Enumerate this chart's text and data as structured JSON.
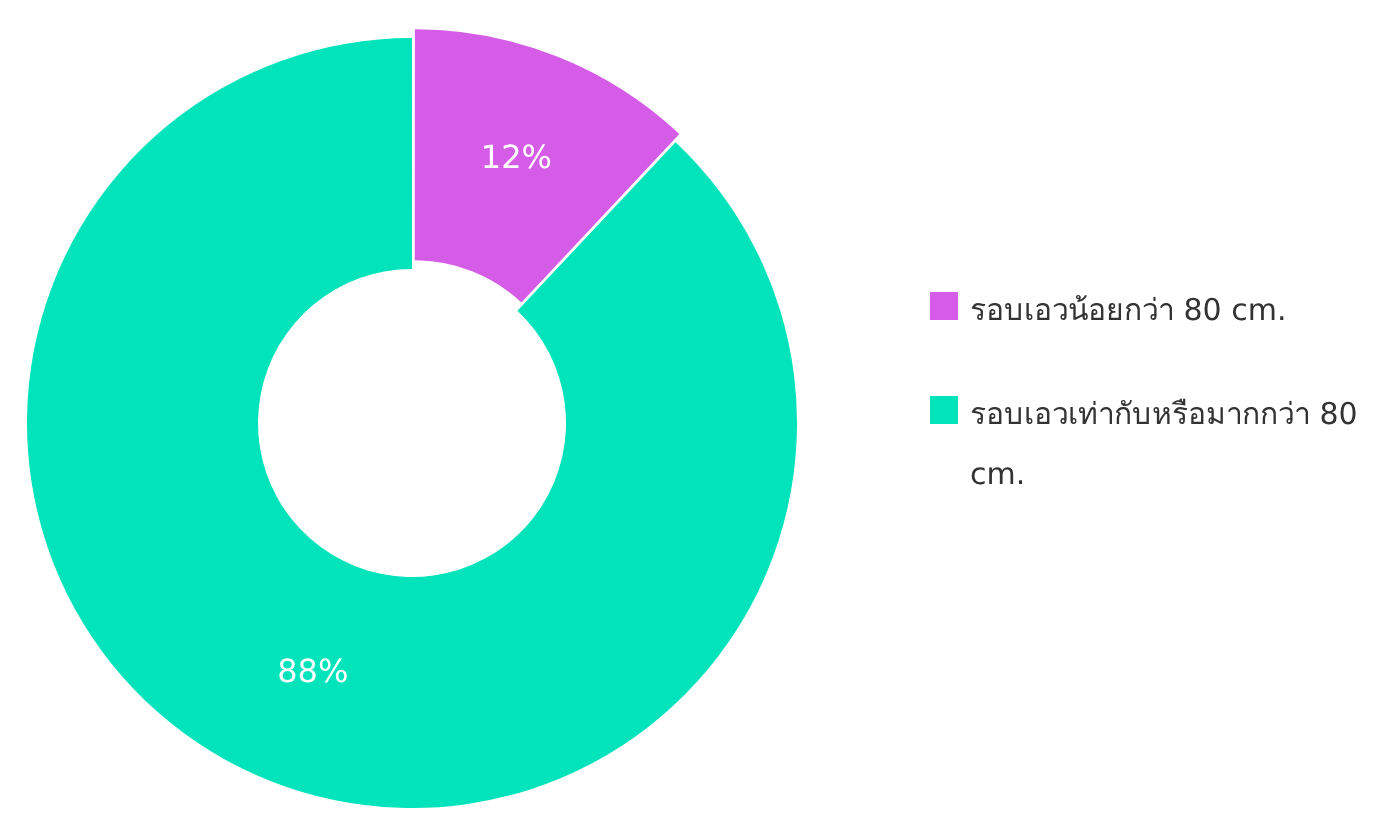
{
  "chart_data": {
    "type": "donut",
    "categories": [
      "รอบเอวน้อยกว่า 80 cm.",
      "รอบเอวเท่ากับหรือมากกว่า 80 cm."
    ],
    "values": [
      12,
      88
    ],
    "colors": [
      "#d55ce6",
      "#00e3bb"
    ],
    "value_labels": [
      "12%",
      "88%"
    ],
    "legend": "right"
  }
}
